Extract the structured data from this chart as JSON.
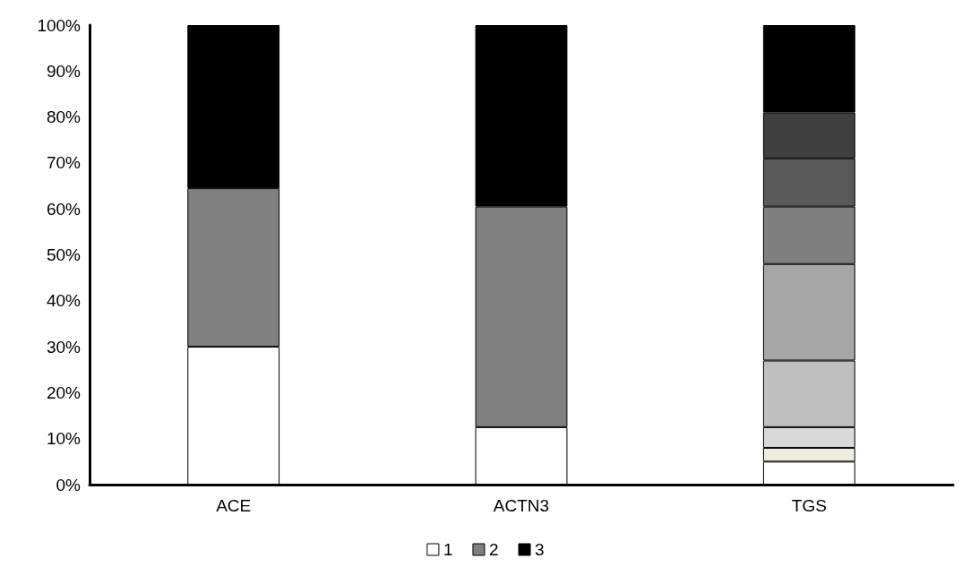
{
  "chart_data": {
    "type": "bar",
    "stacked": true,
    "categories": [
      "ACE",
      "ACTN3",
      "TGS"
    ],
    "series": [
      {
        "name": "1",
        "color": "#ffffff",
        "values": [
          30,
          12.5,
          5
        ]
      },
      {
        "name": "2",
        "color": "#808080",
        "values": [
          34.5,
          48,
          null
        ]
      },
      {
        "name": "3",
        "color": "#000000",
        "values": [
          35.5,
          39.5,
          null
        ]
      },
      {
        "color": "#eeece1",
        "values": [
          null,
          null,
          3
        ]
      },
      {
        "color": "#d9d9d9",
        "values": [
          null,
          null,
          4.5
        ]
      },
      {
        "color": "#bfbfbf",
        "values": [
          null,
          null,
          14.5
        ]
      },
      {
        "color": "#a6a6a6",
        "values": [
          null,
          null,
          21
        ]
      },
      {
        "color": "#7f7f7f",
        "values": [
          null,
          null,
          12.5
        ]
      },
      {
        "color": "#595959",
        "values": [
          null,
          null,
          10.5
        ]
      },
      {
        "color": "#404040",
        "values": [
          null,
          null,
          10
        ]
      },
      {
        "color": "#000000",
        "values": [
          null,
          null,
          19
        ]
      }
    ],
    "ylim": [
      0,
      100
    ],
    "yticks": [
      {
        "value": 0,
        "label": "0%"
      },
      {
        "value": 10,
        "label": "10%"
      },
      {
        "value": 20,
        "label": "20%"
      },
      {
        "value": 30,
        "label": "30%"
      },
      {
        "value": 40,
        "label": "40%"
      },
      {
        "value": 50,
        "label": "50%"
      },
      {
        "value": 60,
        "label": "60%"
      },
      {
        "value": 70,
        "label": "70%"
      },
      {
        "value": 80,
        "label": "80%"
      },
      {
        "value": 90,
        "label": "90%"
      },
      {
        "value": 100,
        "label": "100%"
      }
    ],
    "grid": false,
    "legend": "bottom"
  }
}
